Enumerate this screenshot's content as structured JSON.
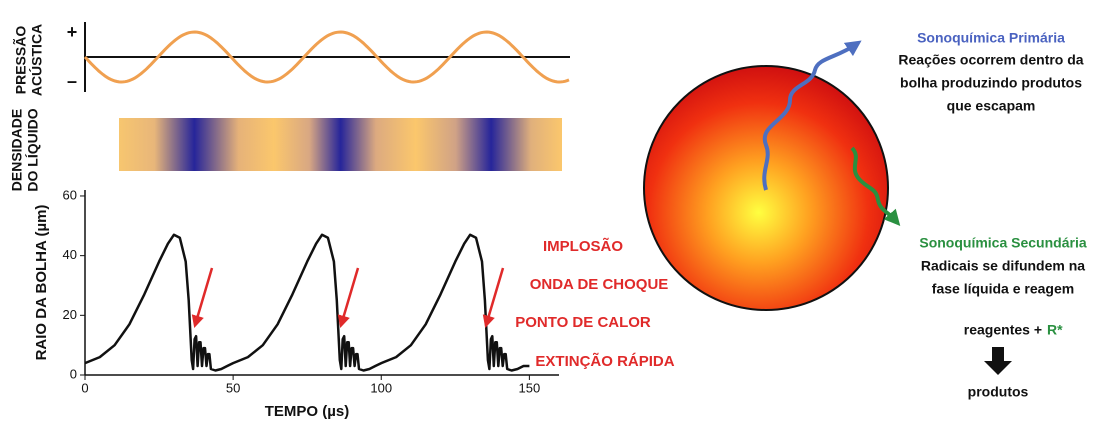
{
  "pressure_panel": {
    "label": [
      "PRESSÃO",
      "ACÚSTICA"
    ],
    "plus": "+",
    "minus": "–"
  },
  "density_panel": {
    "label": [
      "DENSIDADE",
      "DO LÍQUIDO"
    ]
  },
  "chart_data": {
    "type": "line",
    "xlabel": "TEMPO (µs)",
    "ylabel": "RAIO DA BOLHA (µm)",
    "x": [
      0,
      5,
      10,
      15,
      20,
      25,
      28,
      30,
      32,
      34,
      35,
      36,
      36.5,
      37,
      37.5,
      38,
      38.5,
      39,
      39.5,
      40,
      40.5,
      41,
      41.5,
      42,
      42.5,
      44,
      46,
      48,
      50,
      55,
      60,
      65,
      70,
      75,
      78,
      80,
      82,
      84,
      85,
      86,
      86.5,
      87,
      87.5,
      88,
      88.5,
      89,
      89.5,
      90,
      90.5,
      91,
      91.5,
      92,
      92.5,
      94,
      96,
      98,
      100,
      105,
      110,
      115,
      120,
      125,
      128,
      130,
      132,
      134,
      135,
      136,
      136.5,
      137,
      137.5,
      138,
      138.5,
      139,
      139.5,
      140,
      140.5,
      141,
      141.5,
      142,
      142.5,
      144,
      146,
      148,
      150
    ],
    "series": [
      {
        "color": "#111111",
        "values": [
          4,
          6,
          10,
          17,
          27,
          38,
          44,
          47,
          46,
          38,
          25,
          5,
          2,
          12,
          13,
          3,
          11,
          11,
          3,
          9,
          9,
          3,
          7,
          7,
          2,
          1.5,
          2,
          3,
          4,
          6,
          10,
          17,
          27,
          38,
          44,
          47,
          46,
          38,
          25,
          5,
          2,
          12,
          13,
          3,
          11,
          11,
          3,
          9,
          9,
          3,
          7,
          7,
          2,
          1.5,
          2,
          3,
          4,
          6,
          10,
          17,
          27,
          38,
          44,
          47,
          46,
          38,
          25,
          5,
          2,
          12,
          13,
          3,
          11,
          11,
          3,
          9,
          9,
          3,
          7,
          7,
          2,
          1.5,
          2,
          3,
          3
        ]
      }
    ],
    "xlim": [
      0,
      160
    ],
    "ylim": [
      0,
      62
    ],
    "xticks": [
      0,
      50,
      100,
      150
    ],
    "yticks": [
      0,
      20,
      40,
      60
    ],
    "annotations": [
      "IMPLOSÃO",
      "ONDA DE CHOQUE",
      "PONTO DE CALOR",
      "EXTINÇÃO RÁPIDA"
    ]
  },
  "primary": {
    "title": "Sonoquímica Primária",
    "lines": [
      "Reações ocorrem dentro da",
      "bolha produzindo produtos",
      "que escapam"
    ]
  },
  "secondary": {
    "title": "Sonoquímica Secundária",
    "lines": [
      "Radicais se difundem na",
      "fase líquida e reagem"
    ]
  },
  "reaction": {
    "reactants": "reagentes +",
    "radical": "R*",
    "products": "produtos"
  }
}
